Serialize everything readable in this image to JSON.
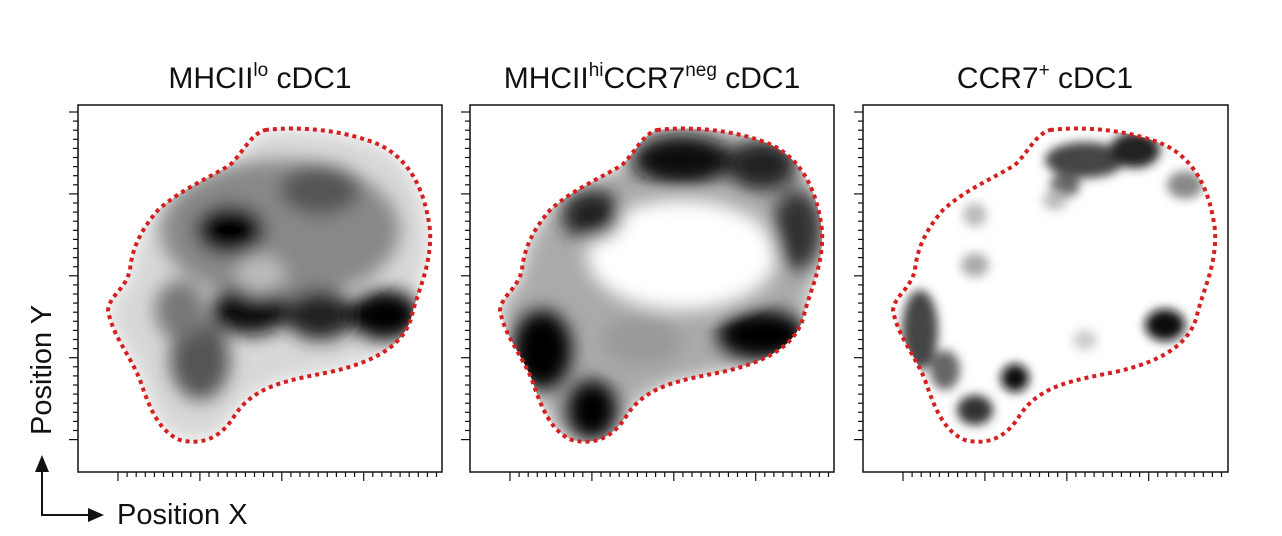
{
  "panels": [
    {
      "title": [
        {
          "text": "MHCII"
        },
        {
          "text": "lo",
          "sup": true
        },
        {
          "text": " cDC1"
        }
      ]
    },
    {
      "title": [
        {
          "text": "MHCII"
        },
        {
          "text": "hi",
          "sup": true
        },
        {
          "text": "CCR7"
        },
        {
          "text": "neg",
          "sup": true
        },
        {
          "text": " cDC1"
        }
      ]
    },
    {
      "title": [
        {
          "text": "CCR7"
        },
        {
          "text": "+",
          "sup": true
        },
        {
          "text": " cDC1"
        }
      ]
    }
  ],
  "axes": {
    "x": "Position X",
    "y": "Position Y"
  }
}
